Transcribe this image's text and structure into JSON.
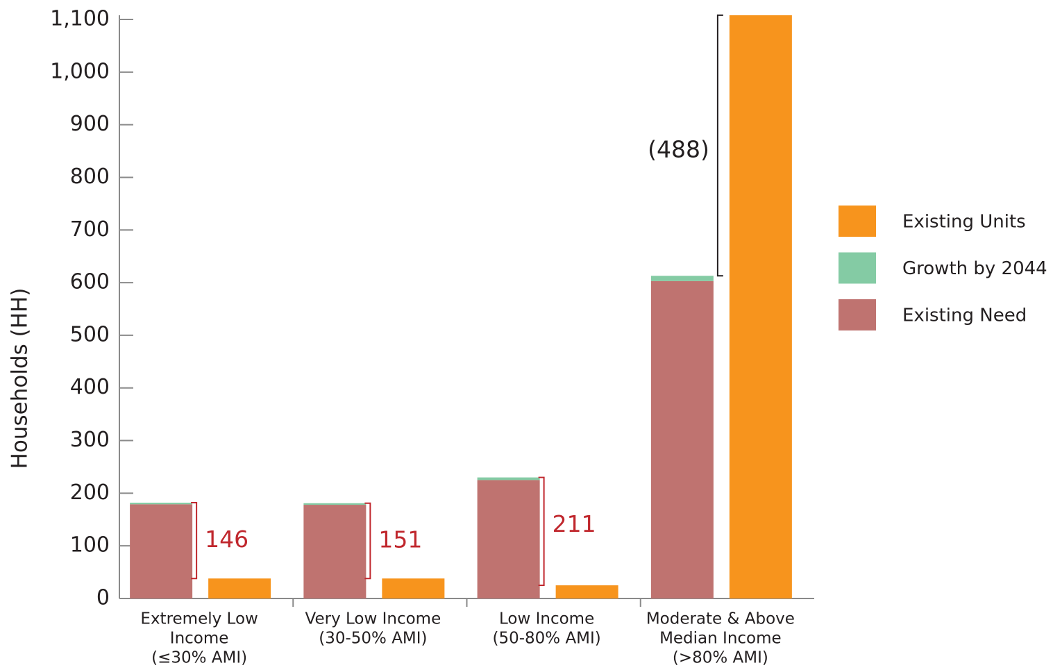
{
  "chart_data": {
    "type": "bar",
    "y_label": "Households (HH)",
    "categories": [
      [
        "Extremely Low",
        "Income",
        "(≤30% AMI)"
      ],
      [
        "Very Low Income",
        "(30-50% AMI)"
      ],
      [
        "Low Income",
        "(50-80% AMI)"
      ],
      [
        "Moderate & Above",
        "Median Income",
        "(>80% AMI)"
      ]
    ],
    "series": [
      {
        "name": "Existing Need",
        "color": "#bf7370",
        "stack": "need",
        "values": [
          179,
          178,
          225,
          603
        ]
      },
      {
        "name": "Growth by 2044",
        "color": "#84cba4",
        "stack": "need",
        "values": [
          3,
          3,
          5,
          10
        ]
      },
      {
        "name": "Existing Units",
        "color": "#f7941d",
        "stack": "units",
        "values": [
          38,
          38,
          25,
          1108
        ]
      }
    ],
    "legend_order": [
      2,
      1,
      0
    ],
    "annotations": [
      {
        "text": "146",
        "color": "#c0272d"
      },
      {
        "text": "151",
        "color": "#c0272d"
      },
      {
        "text": "211",
        "color": "#c0272d"
      },
      {
        "text": "(488)",
        "color": "#231f20"
      }
    ],
    "ylim": [
      0,
      1100
    ],
    "yticks": [
      0,
      100,
      200,
      300,
      400,
      500,
      600,
      700,
      800,
      900,
      {
        "value": 1000,
        "label": "1,000"
      },
      {
        "value": 1100,
        "label": "1,100"
      }
    ]
  }
}
